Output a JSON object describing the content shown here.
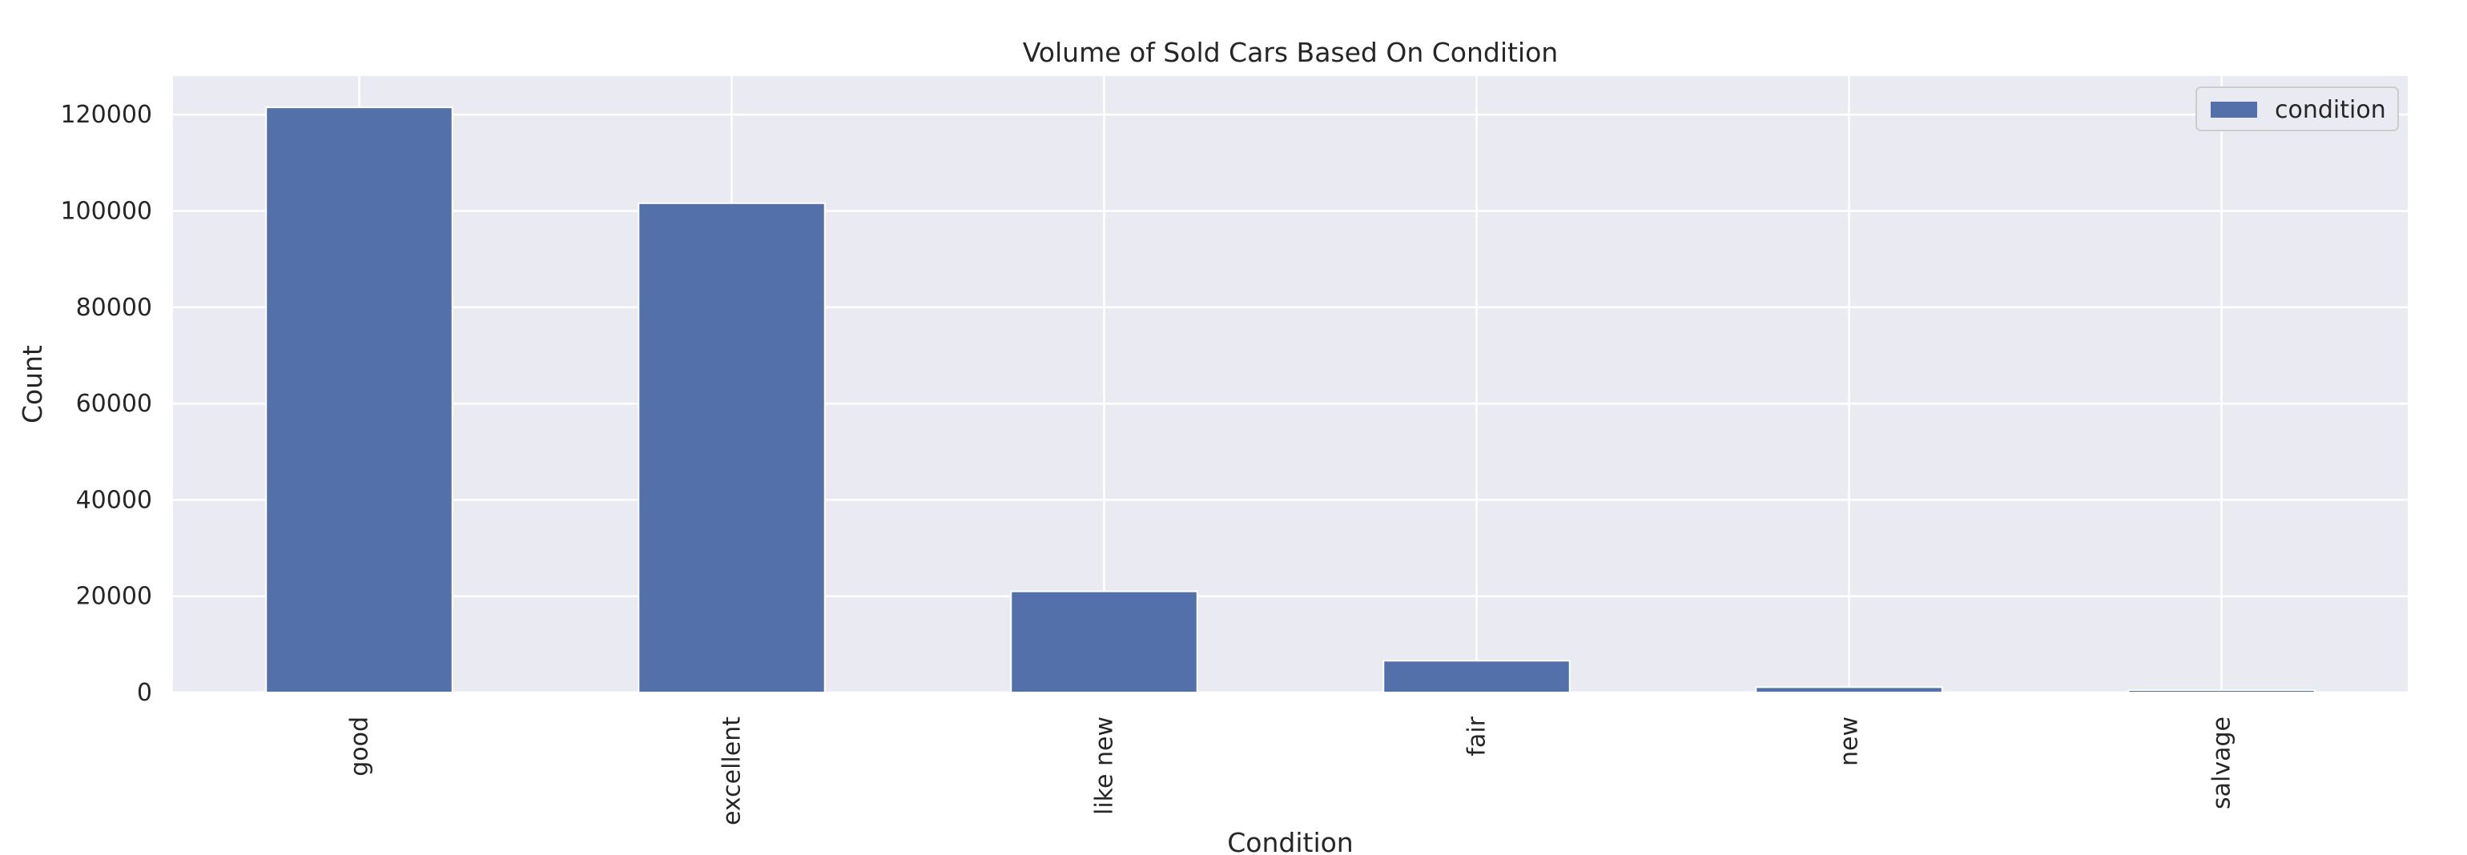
{
  "chart_data": {
    "type": "bar",
    "title": "Volume of Sold Cars Based On Condition",
    "xlabel": "Condition",
    "ylabel": "Count",
    "categories": [
      "good",
      "excellent",
      "like new",
      "fair",
      "new",
      "salvage"
    ],
    "series": [
      {
        "name": "condition",
        "values": [
          121500,
          101600,
          21000,
          6600,
          1100,
          500
        ]
      }
    ],
    "ylim": [
      0,
      128000
    ],
    "yticks": [
      0,
      20000,
      40000,
      60000,
      80000,
      100000,
      120000
    ],
    "ytick_labels": [
      "0",
      "20000",
      "40000",
      "60000",
      "80000",
      "100000",
      "120000"
    ],
    "grid": true,
    "legend_position": "top-right",
    "colors": {
      "bar": "#5470aa",
      "plot_background": "#eaeaf2",
      "grid": "#ffffff",
      "text": "#262626"
    }
  }
}
